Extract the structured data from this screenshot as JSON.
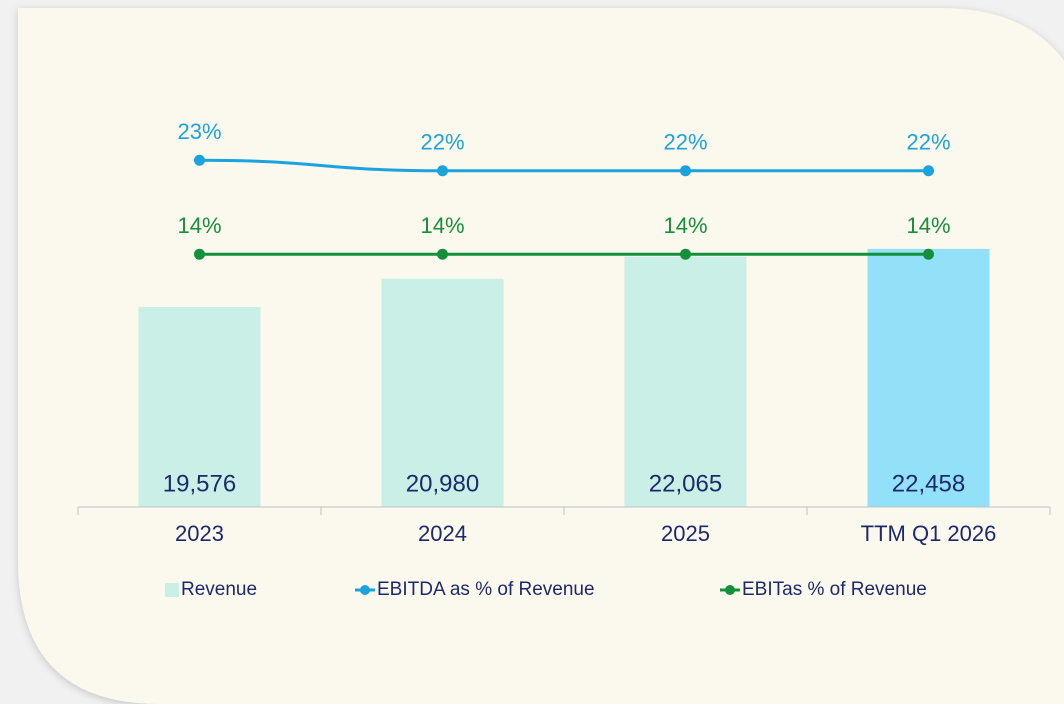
{
  "chart_data": {
    "type": "bar",
    "categories": [
      "2023",
      "2024",
      "2025",
      "TTM Q1 2026"
    ],
    "series": [
      {
        "name": "Revenue",
        "type": "bar",
        "color": "#c9efe7",
        "colors": [
          "#c9efe7",
          "#c9efe7",
          "#c9efe7",
          "#92e1f8"
        ],
        "values": [
          19576,
          20980,
          22065,
          22458
        ],
        "value_labels": [
          "19,576",
          "20,980",
          "22,065",
          "22,458"
        ]
      },
      {
        "name": "EBITDA as % of Revenue",
        "type": "line",
        "axis": "y2",
        "color": "#1ba3de",
        "values": [
          23,
          22,
          22,
          22
        ],
        "value_labels": [
          "23%",
          "22%",
          "22%",
          "22%"
        ]
      },
      {
        "name": "EBITas  % of Revenue",
        "type": "line",
        "axis": "y2",
        "color": "#15903a",
        "values": [
          14,
          14,
          14,
          14
        ],
        "value_labels": [
          "14%",
          "14%",
          "14%",
          "14%"
        ]
      }
    ],
    "ylim": [
      9650,
      29500
    ],
    "y2lim": [
      -10.2,
      28.1
    ],
    "legend": "bottom"
  }
}
